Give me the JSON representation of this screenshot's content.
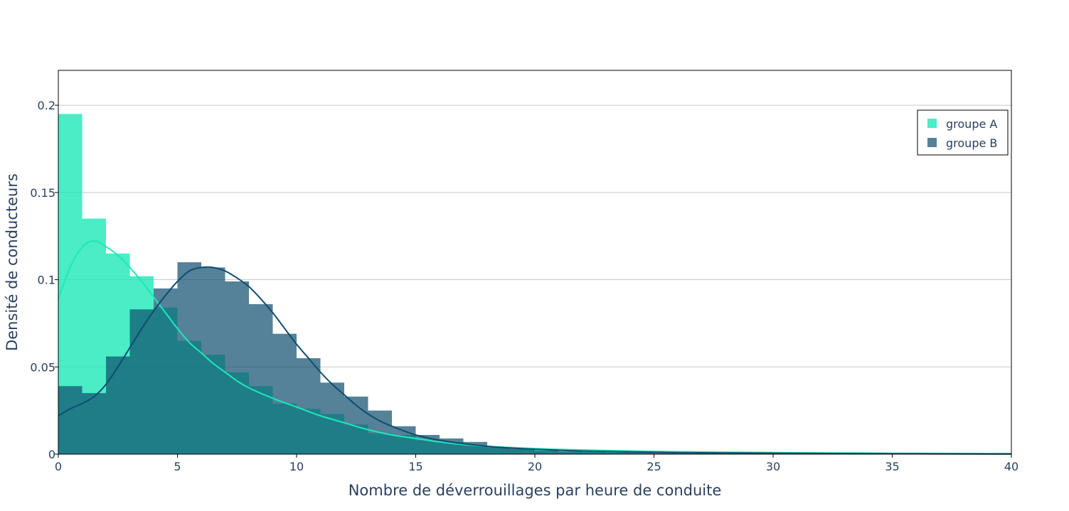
{
  "chart_data": {
    "type": "histogram",
    "xlabel": "Nombre de déverrouillages par heure de conduite",
    "ylabel": "Densité de conducteurs",
    "xlim": [
      0,
      40
    ],
    "ylim": [
      0,
      0.22
    ],
    "x_ticks": [
      0,
      5,
      10,
      15,
      20,
      25,
      30,
      35,
      40
    ],
    "x_tick_labels": [
      "0",
      "5",
      "10",
      "15",
      "20",
      "25",
      "30",
      "35",
      "40"
    ],
    "y_ticks": [
      0,
      0.05,
      0.1,
      0.15,
      0.2
    ],
    "y_tick_labels": [
      "0",
      "0.05",
      "0.1",
      "0.15",
      "0.2"
    ],
    "grid": "horizontal",
    "legend_position": "top-right",
    "bin_width": 1,
    "bin_start": 0,
    "series": [
      {
        "name": "groupe A",
        "color": "#1de9b6",
        "line_color": "#1de9b6",
        "opacity": 0.8,
        "densities": [
          0.195,
          0.135,
          0.115,
          0.102,
          0.084,
          0.065,
          0.057,
          0.047,
          0.039,
          0.029,
          0.026,
          0.023,
          0.017,
          0.012,
          0.011,
          0.008,
          0.007,
          0.005,
          0.004,
          0.003,
          0.0025,
          0.002,
          0.0018,
          0.0015,
          0.0013,
          0.0011,
          0.001,
          0.0009,
          0.0008,
          0.0007,
          0.0006,
          0.0005,
          0.0005,
          0.0004,
          0.0004,
          0.0003,
          0.0003,
          0.0002,
          0.0002,
          0.0002
        ],
        "kde": [
          [
            0,
            0.089
          ],
          [
            0.4,
            0.104
          ],
          [
            0.8,
            0.115
          ],
          [
            1.2,
            0.121
          ],
          [
            1.6,
            0.122
          ],
          [
            2.0,
            0.119
          ],
          [
            2.5,
            0.114
          ],
          [
            3.0,
            0.107
          ],
          [
            3.5,
            0.099
          ],
          [
            4.0,
            0.09
          ],
          [
            4.5,
            0.081
          ],
          [
            5.0,
            0.072
          ],
          [
            5.5,
            0.064
          ],
          [
            6.0,
            0.058
          ],
          [
            6.5,
            0.052
          ],
          [
            7.0,
            0.047
          ],
          [
            7.5,
            0.042
          ],
          [
            8.0,
            0.038
          ],
          [
            9.0,
            0.032
          ],
          [
            10.0,
            0.027
          ],
          [
            11.0,
            0.022
          ],
          [
            12.0,
            0.018
          ],
          [
            13.0,
            0.014
          ],
          [
            14.0,
            0.011
          ],
          [
            15.0,
            0.009
          ],
          [
            16.0,
            0.007
          ],
          [
            17.0,
            0.0055
          ],
          [
            18.0,
            0.0045
          ],
          [
            20.0,
            0.0032
          ],
          [
            22.0,
            0.0024
          ],
          [
            25.0,
            0.0016
          ],
          [
            28.0,
            0.0011
          ],
          [
            31.0,
            0.0008
          ],
          [
            34.0,
            0.0006
          ],
          [
            37.0,
            0.0004
          ],
          [
            40.0,
            0.0003
          ]
        ]
      },
      {
        "name": "groupe B",
        "color": "#0d4d6e",
        "line_color": "#0d4d6e",
        "opacity": 0.7,
        "densities": [
          0.039,
          0.035,
          0.056,
          0.083,
          0.095,
          0.11,
          0.107,
          0.099,
          0.086,
          0.069,
          0.055,
          0.041,
          0.033,
          0.025,
          0.016,
          0.011,
          0.009,
          0.007,
          0.004,
          0.003,
          0.002,
          0.0015,
          0.0012,
          0.001,
          0.0008,
          0.0006,
          0.0005,
          0.0004,
          0.0003,
          0.0002,
          0.0002,
          0.0002,
          0.0001,
          0.0001,
          0.0001,
          0.0001,
          0.0001,
          0.0001,
          0.0,
          0.0
        ],
        "kde": [
          [
            0,
            0.022
          ],
          [
            0.5,
            0.026
          ],
          [
            1.0,
            0.029
          ],
          [
            1.5,
            0.033
          ],
          [
            2.0,
            0.04
          ],
          [
            2.5,
            0.05
          ],
          [
            3.0,
            0.061
          ],
          [
            3.5,
            0.072
          ],
          [
            4.0,
            0.082
          ],
          [
            4.5,
            0.091
          ],
          [
            5.0,
            0.099
          ],
          [
            5.5,
            0.105
          ],
          [
            6.0,
            0.107
          ],
          [
            6.5,
            0.107
          ],
          [
            7.0,
            0.105
          ],
          [
            7.5,
            0.101
          ],
          [
            8.0,
            0.096
          ],
          [
            8.5,
            0.089
          ],
          [
            9.0,
            0.081
          ],
          [
            9.5,
            0.072
          ],
          [
            10.0,
            0.063
          ],
          [
            10.5,
            0.055
          ],
          [
            11.0,
            0.047
          ],
          [
            11.5,
            0.04
          ],
          [
            12.0,
            0.034
          ],
          [
            12.5,
            0.028
          ],
          [
            13.0,
            0.023
          ],
          [
            13.5,
            0.019
          ],
          [
            14.0,
            0.016
          ],
          [
            15.0,
            0.011
          ],
          [
            16.0,
            0.008
          ],
          [
            17.0,
            0.006
          ],
          [
            18.0,
            0.0045
          ],
          [
            19.0,
            0.0035
          ],
          [
            20.0,
            0.0028
          ],
          [
            22.0,
            0.0018
          ],
          [
            25.0,
            0.0011
          ],
          [
            28.0,
            0.0007
          ],
          [
            32.0,
            0.0004
          ],
          [
            36.0,
            0.0002
          ],
          [
            40.0,
            0.0001
          ]
        ]
      }
    ]
  }
}
